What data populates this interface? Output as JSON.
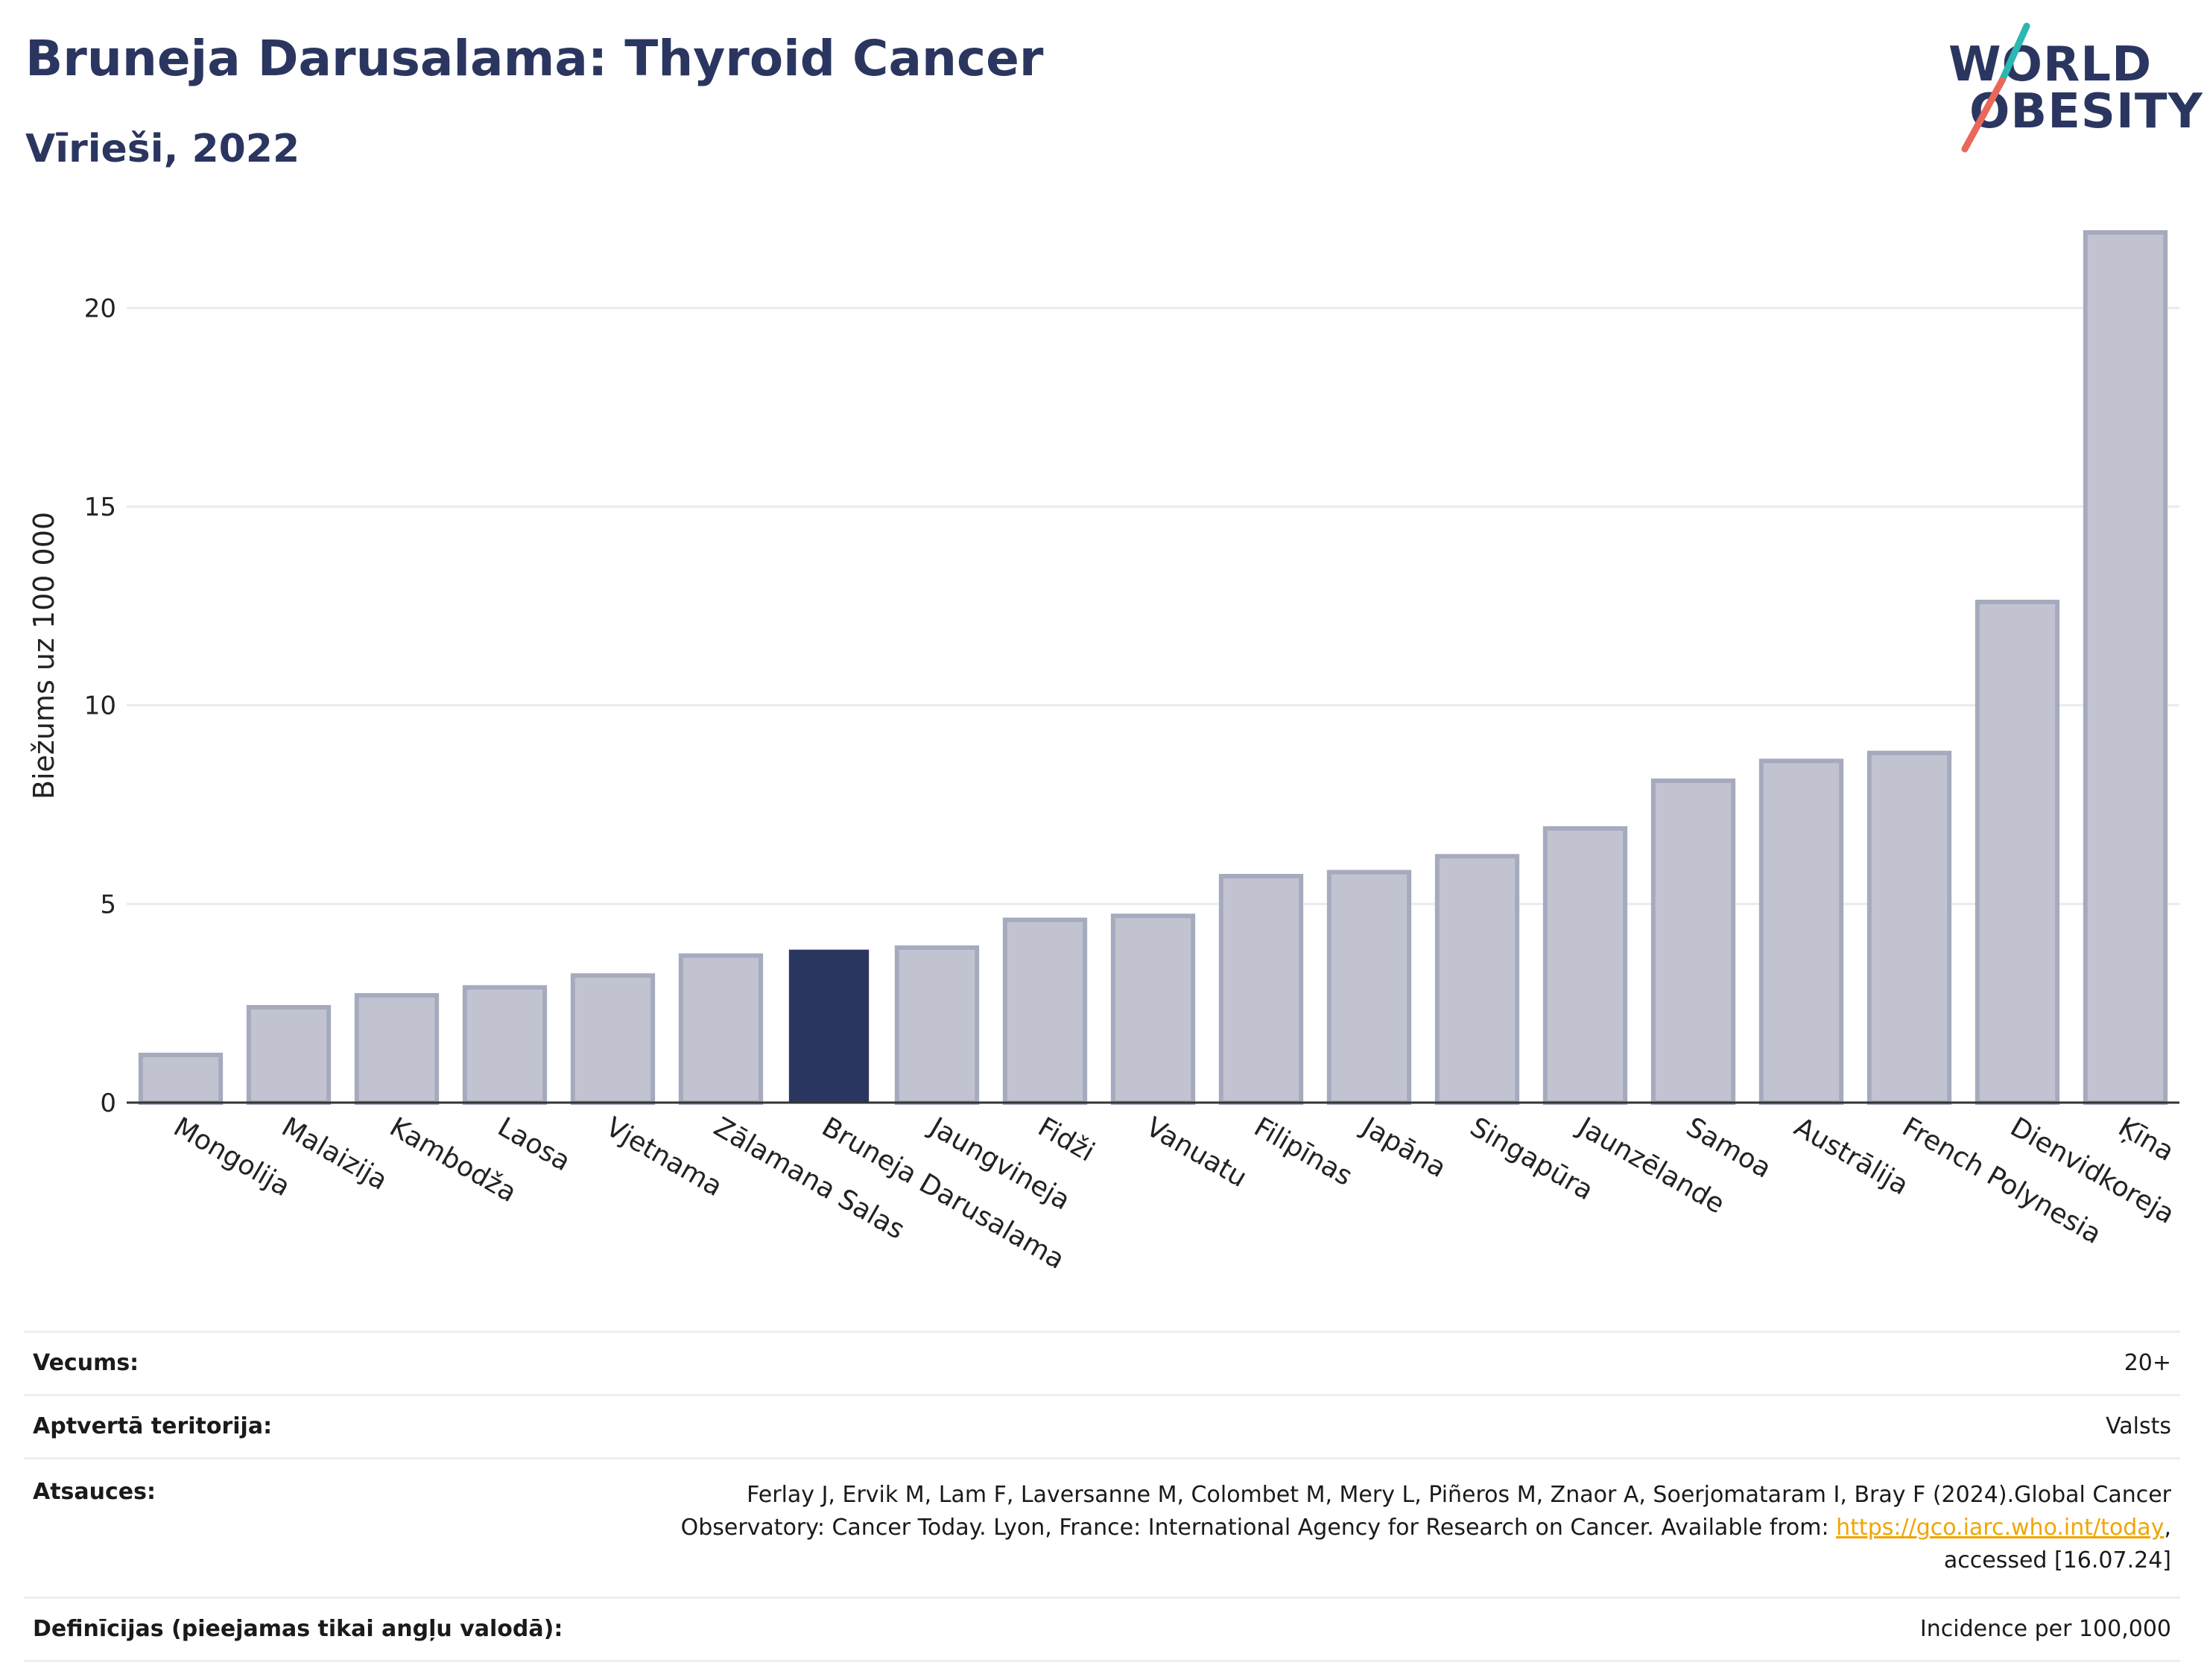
{
  "header": {
    "title": "Bruneja Darusalama: Thyroid Cancer",
    "subtitle": "Vīrieši, 2022"
  },
  "logo": {
    "line1": "WORLD",
    "line2": "OBESITY",
    "accent_teal": "#2ab8b0",
    "accent_red": "#e8685a"
  },
  "chart_data": {
    "type": "bar",
    "title": "",
    "xlabel": "",
    "ylabel": "Biežums uz 100 000",
    "ylim": [
      0,
      22.5
    ],
    "yticks": [
      0,
      5,
      10,
      15,
      20
    ],
    "grid": true,
    "categories": [
      "Mongolija",
      "Malaizija",
      "Kambodža",
      "Laosa",
      "Vjetnama",
      "Zālamana Salas",
      "Bruneja Darusalama",
      "Jaungvineja",
      "Fidži",
      "Vanuatu",
      "Filipīnas",
      "Japāna",
      "Singapūra",
      "Jaunzēlande",
      "Samoa",
      "Austrālija",
      "French Polynesia",
      "Dienvidkoreja",
      "Ķīna"
    ],
    "values": [
      1.2,
      2.4,
      2.7,
      2.9,
      3.2,
      3.7,
      3.85,
      3.9,
      4.6,
      4.7,
      5.7,
      5.8,
      6.2,
      6.9,
      8.1,
      8.6,
      8.8,
      12.6,
      21.9
    ],
    "highlight": "Bruneja Darusalama",
    "colors": {
      "bar": "#c1c4d0",
      "bar_border": "#a6aabe",
      "highlight": "#2b3660",
      "grid": "#e9ebf0",
      "axis": "#333333"
    }
  },
  "meta": {
    "age_label": "Vecums:",
    "age_value": "20+",
    "coverage_label": "Aptvertā teritorija:",
    "coverage_value": "Valsts",
    "refs_label": "Atsauces:",
    "refs_line1": "Ferlay J, Ervik M, Lam F, Laversanne M, Colombet M, Mery L, Piñeros M, Znaor A, Soerjomataram I, Bray F (2024).Global Cancer",
    "refs_line2a": "Observatory: Cancer Today. Lyon, France: International Agency for Research on Cancer. Available from: ",
    "refs_link": "https://gco.iarc.who.int/today",
    "refs_line2b": ",",
    "refs_line3": "accessed [16.07.24]",
    "defs_label": "Definīcijas (pieejamas tikai angļu valodā):",
    "defs_value": "Incidence per 100,000"
  }
}
